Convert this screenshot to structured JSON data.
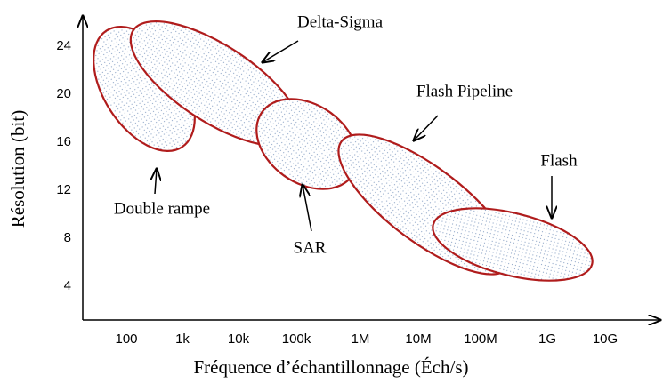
{
  "axes": {
    "y_title": "Résolution (bit)",
    "x_title": "Fréquence d’échantillonnage (Éch/s)",
    "y_ticks": [
      "24",
      "20",
      "16",
      "12",
      "8",
      "4"
    ],
    "x_ticks": [
      "100",
      "1k",
      "10k",
      "100k",
      "1M",
      "10M",
      "100M",
      "1G",
      "10G"
    ]
  },
  "regions": [
    {
      "label": "Double rampe"
    },
    {
      "label": "Delta-Sigma"
    },
    {
      "label": "SAR"
    },
    {
      "label": "Flash Pipeline"
    },
    {
      "label": "Flash"
    }
  ]
}
